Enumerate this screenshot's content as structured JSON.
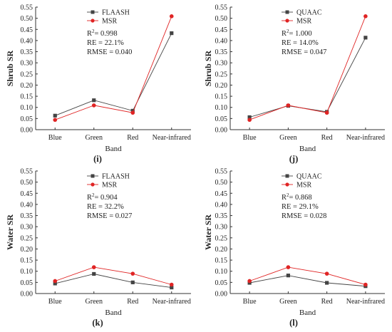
{
  "colors": {
    "reference": "#444444",
    "msr": "#e02424",
    "axis": "#333333"
  },
  "chart_data": [
    {
      "type": "line",
      "panel": "(i)",
      "categories": [
        "Blue",
        "Green",
        "Red",
        "Near-infrared"
      ],
      "xlabel": "Band",
      "ylabel": "Shrub SR",
      "ylim": [
        0,
        0.55
      ],
      "yticks": [
        "0.00",
        "0.05",
        "0.10",
        "0.15",
        "0.20",
        "0.25",
        "0.30",
        "0.35",
        "0.40",
        "0.45",
        "0.50",
        "0.55"
      ],
      "series": [
        {
          "name": "FLAASH",
          "marker": "square",
          "values": [
            0.063,
            0.132,
            0.085,
            0.433
          ]
        },
        {
          "name": "MSR",
          "marker": "circle",
          "values": [
            0.044,
            0.109,
            0.076,
            0.509
          ]
        }
      ],
      "stats": {
        "r2": "= 0.998",
        "re": "RE = 22.1%",
        "rmse": "RMSE = 0.040"
      }
    },
    {
      "type": "line",
      "panel": "(j)",
      "categories": [
        "Blue",
        "Green",
        "Red",
        "Near-infrared"
      ],
      "xlabel": "Band",
      "ylabel": "Shrub SR",
      "ylim": [
        0,
        0.55
      ],
      "yticks": [
        "0.00",
        "0.05",
        "0.10",
        "0.15",
        "0.20",
        "0.25",
        "0.30",
        "0.35",
        "0.40",
        "0.45",
        "0.50",
        "0.55"
      ],
      "series": [
        {
          "name": "QUAAC",
          "marker": "square",
          "values": [
            0.056,
            0.107,
            0.08,
            0.413
          ]
        },
        {
          "name": "MSR",
          "marker": "circle",
          "values": [
            0.044,
            0.109,
            0.076,
            0.509
          ]
        }
      ],
      "stats": {
        "r2": "= 1.000",
        "re": "RE = 14.0%",
        "rmse": "RMSE = 0.047"
      }
    },
    {
      "type": "line",
      "panel": "(k)",
      "categories": [
        "Blue",
        "Green",
        "Red",
        "Near-infrared"
      ],
      "xlabel": "Band",
      "ylabel": "Water SR",
      "ylim": [
        0,
        0.55
      ],
      "yticks": [
        "0.00",
        "0.05",
        "0.10",
        "0.15",
        "0.20",
        "0.25",
        "0.30",
        "0.35",
        "0.40",
        "0.45",
        "0.50",
        "0.55"
      ],
      "series": [
        {
          "name": "FLAASH",
          "marker": "square",
          "values": [
            0.045,
            0.088,
            0.05,
            0.027
          ]
        },
        {
          "name": "MSR",
          "marker": "circle",
          "values": [
            0.056,
            0.118,
            0.089,
            0.04
          ]
        }
      ],
      "stats": {
        "r2": "= 0.904",
        "re": "RE = 32.2%",
        "rmse": "RMSE = 0.027"
      }
    },
    {
      "type": "line",
      "panel": "(l)",
      "categories": [
        "Blue",
        "Green",
        "Red",
        "Near-infrared"
      ],
      "xlabel": "Band",
      "ylabel": "Water SR",
      "ylim": [
        0,
        0.55
      ],
      "yticks": [
        "0.00",
        "0.05",
        "0.10",
        "0.15",
        "0.20",
        "0.25",
        "0.30",
        "0.35",
        "0.40",
        "0.45",
        "0.50",
        "0.55"
      ],
      "series": [
        {
          "name": "QUAAC",
          "marker": "square",
          "values": [
            0.048,
            0.081,
            0.048,
            0.033
          ]
        },
        {
          "name": "MSR",
          "marker": "circle",
          "values": [
            0.056,
            0.118,
            0.089,
            0.04
          ]
        }
      ],
      "stats": {
        "r2": "= 0.868",
        "re": "RE = 29.1%",
        "rmse": "RMSE = 0.028"
      }
    }
  ]
}
